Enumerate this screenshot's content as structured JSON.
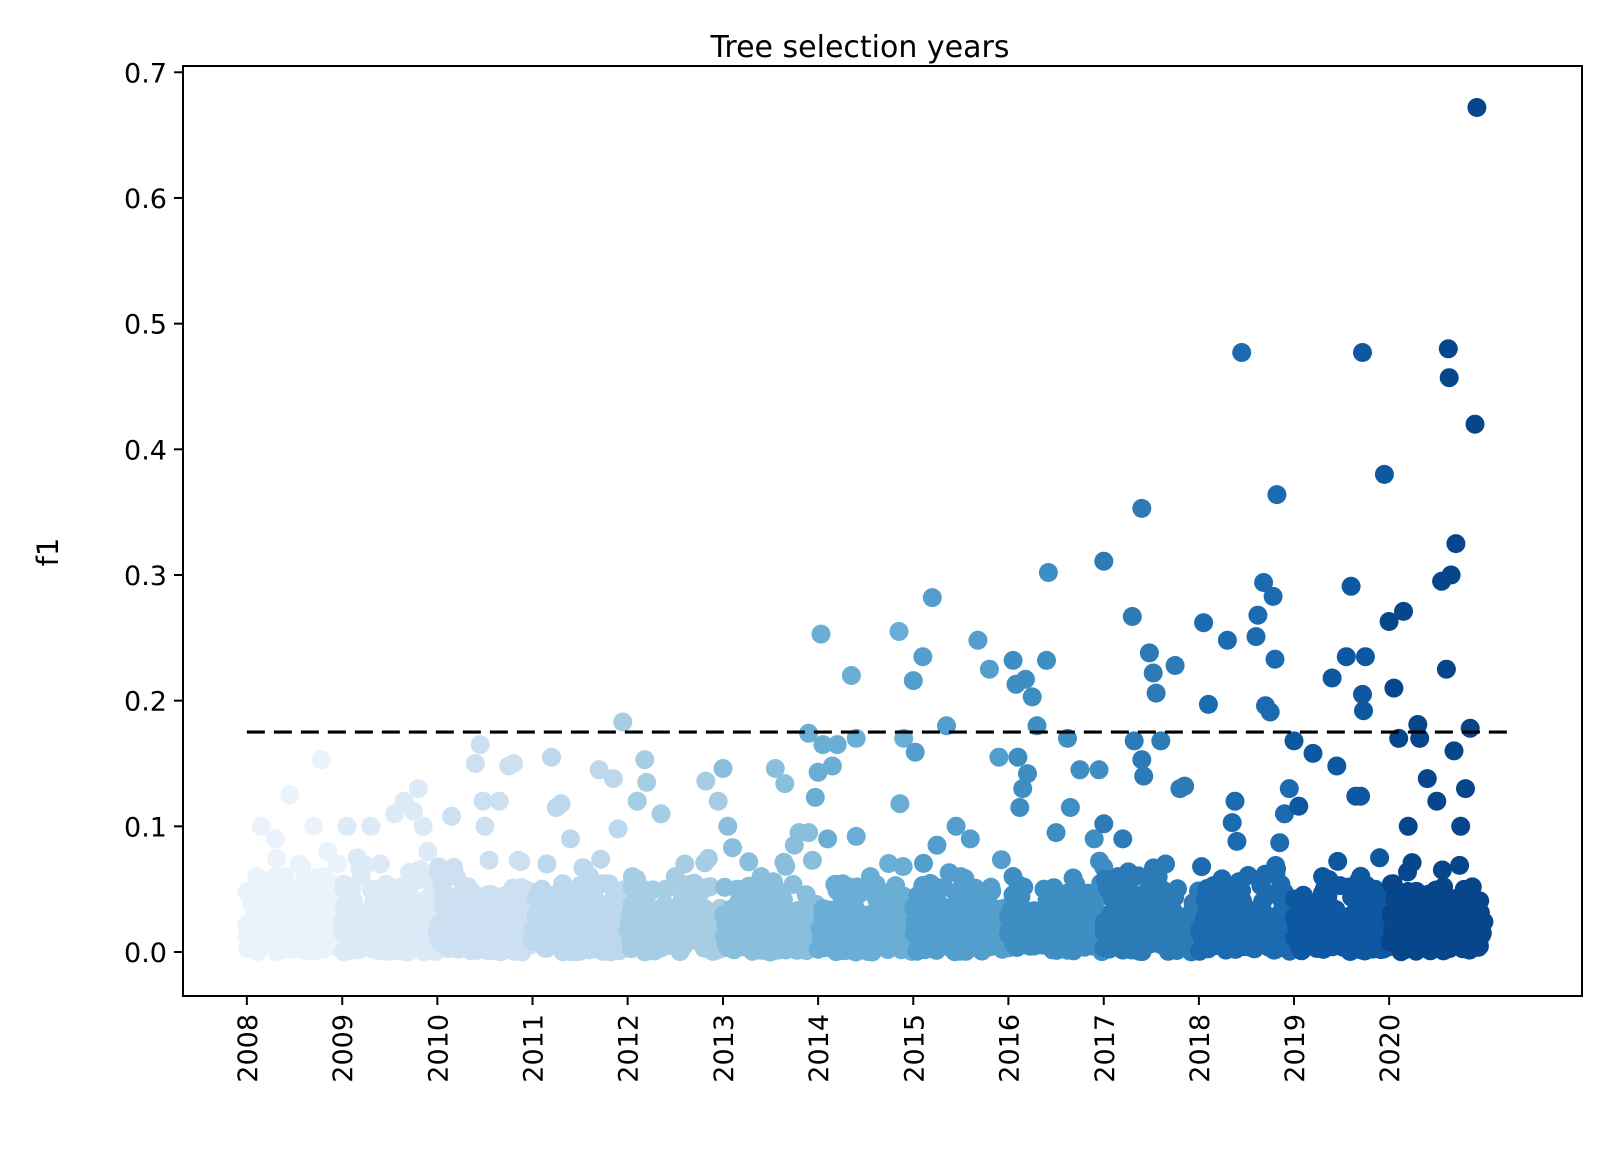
{
  "chart_data": {
    "type": "scatter",
    "title": "Tree selection years",
    "xlabel": "",
    "ylabel": "f1",
    "ylim": [
      -0.035,
      0.705
    ],
    "xlim": [
      "2007-05-01",
      "2022-01-10"
    ],
    "y_ticks": [
      0.0,
      0.1,
      0.2,
      0.3,
      0.4,
      0.5,
      0.6,
      0.7
    ],
    "y_tick_labels": [
      "0.0",
      "0.1",
      "0.2",
      "0.3",
      "0.4",
      "0.5",
      "0.6",
      "0.7"
    ],
    "x_ticks": [
      "2008-01-01",
      "2009-01-01",
      "2010-01-01",
      "2011-01-01",
      "2012-01-01",
      "2013-01-01",
      "2014-01-01",
      "2015-01-01",
      "2016-01-01",
      "2017-01-01",
      "2018-01-01",
      "2019-01-01",
      "2020-01-01"
    ],
    "x_tick_labels": [
      "2008",
      "2009",
      "2010",
      "2011",
      "2012",
      "2013",
      "2014",
      "2015",
      "2016",
      "2017",
      "2018",
      "2019",
      "2020"
    ],
    "reference_line": {
      "y": 0.175,
      "x_start": "2008-01-01",
      "x_end": "2021-04-01",
      "style": "dashed",
      "color": "#000000"
    },
    "grid": false,
    "colormap": [
      "#eaf2fb",
      "#dce9f6",
      "#cde0f1",
      "#bdd7ec",
      "#a6cde3",
      "#89bedc",
      "#6aaed6",
      "#539ecd",
      "#3e8ec4",
      "#2c7bb6",
      "#1c6bb0",
      "#0e58a2",
      "#08468b"
    ],
    "series": [
      {
        "name": "2008",
        "points": [
          [
            0.15,
            0.1
          ],
          [
            0.3,
            0.09
          ],
          [
            0.45,
            0.125
          ],
          [
            0.55,
            0.07
          ],
          [
            0.7,
            0.1
          ],
          [
            0.78,
            0.153
          ],
          [
            0.85,
            0.08
          ],
          [
            0.95,
            0.07
          ],
          [
            0.1,
            0.04
          ],
          [
            0.3,
            0.06
          ],
          [
            0.5,
            0.05
          ],
          [
            0.65,
            0.045
          ],
          [
            0.8,
            0.06
          ],
          [
            0.9,
            0.04
          ],
          [
            0.2,
            0.02
          ],
          [
            0.6,
            0.03
          ]
        ]
      },
      {
        "name": "2009",
        "points": [
          [
            0.05,
            0.1
          ],
          [
            0.1,
            0.05
          ],
          [
            0.3,
            0.1
          ],
          [
            0.4,
            0.07
          ],
          [
            0.55,
            0.11
          ],
          [
            0.65,
            0.12
          ],
          [
            0.75,
            0.112
          ],
          [
            0.8,
            0.13
          ],
          [
            0.85,
            0.1
          ],
          [
            0.9,
            0.08
          ],
          [
            0.2,
            0.06
          ],
          [
            0.5,
            0.04
          ],
          [
            0.7,
            0.05
          ],
          [
            0.35,
            0.03
          ],
          [
            0.95,
            0.04
          ]
        ]
      },
      {
        "name": "2010",
        "points": [
          [
            0.15,
            0.108
          ],
          [
            0.2,
            0.06
          ],
          [
            0.4,
            0.15
          ],
          [
            0.45,
            0.165
          ],
          [
            0.48,
            0.12
          ],
          [
            0.5,
            0.1
          ],
          [
            0.65,
            0.12
          ],
          [
            0.75,
            0.148
          ],
          [
            0.8,
            0.15
          ],
          [
            0.85,
            0.073
          ],
          [
            0.3,
            0.05
          ],
          [
            0.55,
            0.04
          ],
          [
            0.7,
            0.035
          ],
          [
            0.1,
            0.03
          ]
        ]
      },
      {
        "name": "2011",
        "points": [
          [
            0.2,
            0.155
          ],
          [
            0.25,
            0.115
          ],
          [
            0.3,
            0.118
          ],
          [
            0.35,
            0.05
          ],
          [
            0.4,
            0.09
          ],
          [
            0.5,
            0.04
          ],
          [
            0.7,
            0.145
          ],
          [
            0.85,
            0.138
          ],
          [
            0.9,
            0.098
          ],
          [
            0.15,
            0.07
          ],
          [
            0.6,
            0.06
          ],
          [
            0.1,
            0.05
          ]
        ]
      },
      {
        "name": "2012",
        "points": [
          [
            -0.05,
            0.183
          ],
          [
            0.1,
            0.12
          ],
          [
            0.18,
            0.153
          ],
          [
            0.2,
            0.135
          ],
          [
            0.35,
            0.11
          ],
          [
            0.5,
            0.06
          ],
          [
            0.6,
            0.07
          ],
          [
            0.82,
            0.136
          ],
          [
            0.95,
            0.12
          ],
          [
            0.4,
            0.05
          ],
          [
            0.7,
            0.04
          ],
          [
            0.05,
            0.06
          ]
        ]
      },
      {
        "name": "2013",
        "points": [
          [
            0.0,
            0.146
          ],
          [
            0.05,
            0.1
          ],
          [
            0.1,
            0.083
          ],
          [
            0.25,
            0.05
          ],
          [
            0.4,
            0.06
          ],
          [
            0.55,
            0.146
          ],
          [
            0.65,
            0.134
          ],
          [
            0.75,
            0.085
          ],
          [
            0.8,
            0.095
          ],
          [
            0.9,
            0.095
          ],
          [
            0.3,
            0.04
          ],
          [
            0.15,
            0.05
          ]
        ]
      },
      {
        "name": "2014",
        "points": [
          [
            -0.1,
            0.174
          ],
          [
            -0.03,
            0.123
          ],
          [
            0.0,
            0.143
          ],
          [
            0.03,
            0.253
          ],
          [
            0.05,
            0.165
          ],
          [
            0.15,
            0.148
          ],
          [
            0.2,
            0.165
          ],
          [
            0.35,
            0.22
          ],
          [
            0.4,
            0.17
          ],
          [
            0.4,
            0.092
          ],
          [
            0.1,
            0.09
          ],
          [
            0.55,
            0.06
          ],
          [
            0.85,
            0.255
          ],
          [
            0.86,
            0.118
          ],
          [
            0.9,
            0.17
          ],
          [
            0.3,
            0.05
          ]
        ]
      },
      {
        "name": "2015",
        "points": [
          [
            0.0,
            0.216
          ],
          [
            0.02,
            0.159
          ],
          [
            0.1,
            0.235
          ],
          [
            0.2,
            0.282
          ],
          [
            0.25,
            0.085
          ],
          [
            0.35,
            0.18
          ],
          [
            0.45,
            0.1
          ],
          [
            0.6,
            0.09
          ],
          [
            0.68,
            0.248
          ],
          [
            0.8,
            0.225
          ],
          [
            0.9,
            0.155
          ],
          [
            0.5,
            0.06
          ]
        ]
      },
      {
        "name": "2016",
        "points": [
          [
            0.05,
            0.232
          ],
          [
            0.08,
            0.213
          ],
          [
            0.1,
            0.155
          ],
          [
            0.12,
            0.115
          ],
          [
            0.15,
            0.13
          ],
          [
            0.18,
            0.217
          ],
          [
            0.2,
            0.142
          ],
          [
            0.25,
            0.203
          ],
          [
            0.3,
            0.18
          ],
          [
            0.4,
            0.232
          ],
          [
            0.42,
            0.302
          ],
          [
            0.5,
            0.095
          ],
          [
            0.62,
            0.17
          ],
          [
            0.65,
            0.115
          ],
          [
            0.75,
            0.145
          ],
          [
            0.95,
            0.145
          ],
          [
            0.9,
            0.09
          ]
        ]
      },
      {
        "name": "2017",
        "points": [
          [
            0.0,
            0.311
          ],
          [
            0.0,
            0.102
          ],
          [
            0.2,
            0.09
          ],
          [
            0.3,
            0.267
          ],
          [
            0.32,
            0.168
          ],
          [
            0.4,
            0.153
          ],
          [
            0.42,
            0.14
          ],
          [
            0.4,
            0.353
          ],
          [
            0.48,
            0.238
          ],
          [
            0.52,
            0.222
          ],
          [
            0.55,
            0.206
          ],
          [
            0.6,
            0.168
          ],
          [
            0.75,
            0.228
          ],
          [
            0.8,
            0.13
          ],
          [
            0.85,
            0.132
          ],
          [
            0.15,
            0.06
          ],
          [
            0.65,
            0.07
          ]
        ]
      },
      {
        "name": "2018",
        "points": [
          [
            0.05,
            0.262
          ],
          [
            0.1,
            0.197
          ],
          [
            0.3,
            0.248
          ],
          [
            0.35,
            0.103
          ],
          [
            0.38,
            0.12
          ],
          [
            0.4,
            0.088
          ],
          [
            0.45,
            0.477
          ],
          [
            0.6,
            0.251
          ],
          [
            0.62,
            0.268
          ],
          [
            0.68,
            0.294
          ],
          [
            0.7,
            0.196
          ],
          [
            0.75,
            0.191
          ],
          [
            0.78,
            0.283
          ],
          [
            0.8,
            0.233
          ],
          [
            0.82,
            0.364
          ],
          [
            0.85,
            0.087
          ],
          [
            0.9,
            0.11
          ],
          [
            0.95,
            0.13
          ]
        ]
      },
      {
        "name": "2019",
        "points": [
          [
            0.0,
            0.168
          ],
          [
            0.05,
            0.116
          ],
          [
            0.2,
            0.158
          ],
          [
            0.4,
            0.218
          ],
          [
            0.45,
            0.148
          ],
          [
            0.55,
            0.235
          ],
          [
            0.6,
            0.291
          ],
          [
            0.65,
            0.124
          ],
          [
            0.7,
            0.124
          ],
          [
            0.72,
            0.205
          ],
          [
            0.73,
            0.192
          ],
          [
            0.75,
            0.235
          ],
          [
            0.72,
            0.477
          ],
          [
            0.9,
            0.075
          ],
          [
            0.95,
            0.38
          ],
          [
            0.3,
            0.06
          ],
          [
            0.85,
            0.05
          ]
        ]
      },
      {
        "name": "2020",
        "points": [
          [
            0.0,
            0.263
          ],
          [
            0.05,
            0.21
          ],
          [
            0.1,
            0.17
          ],
          [
            0.15,
            0.271
          ],
          [
            0.3,
            0.181
          ],
          [
            0.32,
            0.17
          ],
          [
            0.4,
            0.138
          ],
          [
            0.55,
            0.295
          ],
          [
            0.6,
            0.225
          ],
          [
            0.62,
            0.48
          ],
          [
            0.63,
            0.457
          ],
          [
            0.65,
            0.3
          ],
          [
            0.68,
            0.16
          ],
          [
            0.7,
            0.325
          ],
          [
            0.8,
            0.13
          ],
          [
            0.85,
            0.178
          ],
          [
            0.9,
            0.42
          ],
          [
            0.92,
            0.672
          ],
          [
            0.5,
            0.12
          ],
          [
            0.75,
            0.1
          ],
          [
            0.2,
            0.1
          ]
        ]
      }
    ]
  }
}
